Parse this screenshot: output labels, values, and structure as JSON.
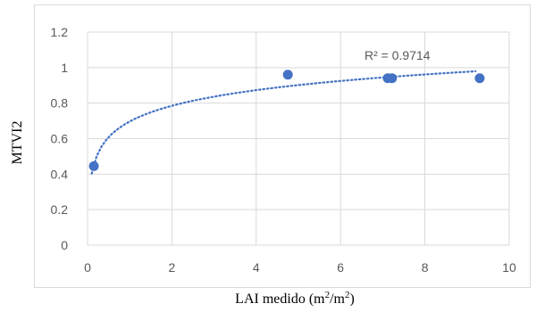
{
  "chart_data": {
    "type": "scatter",
    "xlabel": "LAI medido (m",
    "xlabel_unit_sup1": "2",
    "xlabel_unit_mid": "/m",
    "xlabel_unit_sup2": "2",
    "xlabel_close": ")",
    "ylabel": "MTVI2",
    "xlim": [
      0,
      10
    ],
    "ylim": [
      0,
      1.2
    ],
    "x_ticks": [
      "0",
      "2",
      "4",
      "6",
      "8",
      "10"
    ],
    "y_ticks": [
      "0",
      "0.2",
      "0.4",
      "0.6",
      "0.8",
      "1",
      "1.2"
    ],
    "grid": true,
    "series": [
      {
        "x": [
          0.15,
          4.75,
          7.12,
          7.22,
          9.3
        ],
        "y": [
          0.445,
          0.96,
          0.94,
          0.94,
          0.94
        ]
      }
    ],
    "trendline": {
      "kind": "logarithmic",
      "x_range": [
        0.1,
        9.2
      ]
    },
    "annotation": "R² = 0.9714",
    "colors": {
      "marker": "#4472c4",
      "trendline": "#4472c4",
      "grid": "#d9d9d9",
      "frame": "#d9d9d9"
    }
  }
}
